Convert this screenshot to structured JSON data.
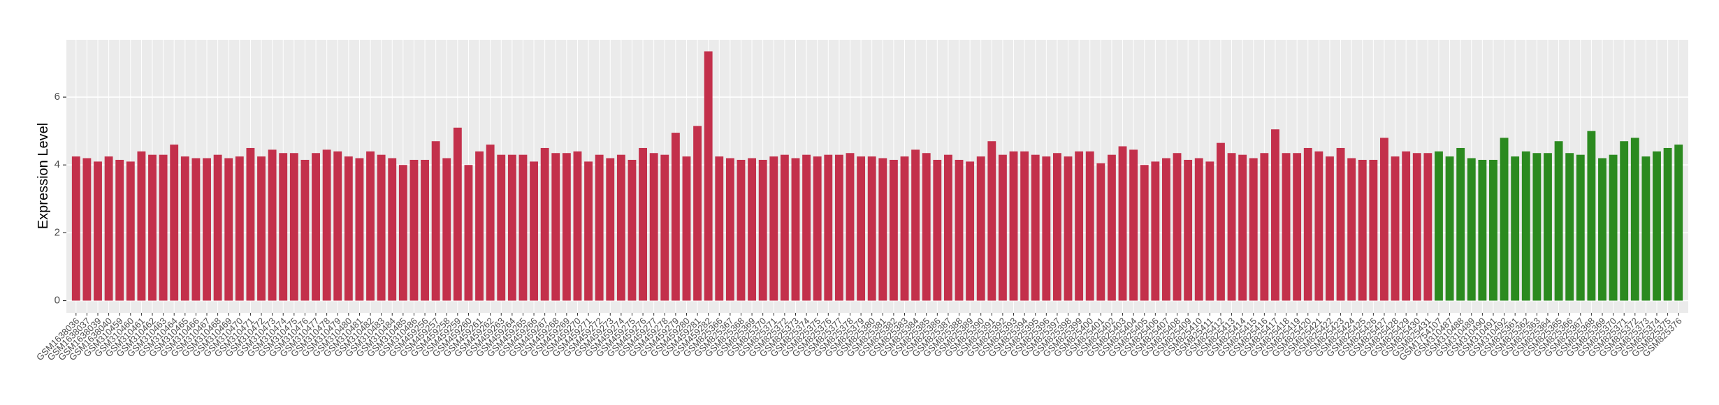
{
  "chart_data": {
    "type": "bar",
    "y_label": "Expression Level",
    "categories": [
      "GSM1638036",
      "GSM1638037",
      "GSM1638039",
      "GSM1638040",
      "GSM310459",
      "GSM310460",
      "GSM310461",
      "GSM310462",
      "GSM310463",
      "GSM310464",
      "GSM310465",
      "GSM310466",
      "GSM310467",
      "GSM310468",
      "GSM310469",
      "GSM310470",
      "GSM310471",
      "GSM310472",
      "GSM310473",
      "GSM310474",
      "GSM310475",
      "GSM310476",
      "GSM310477",
      "GSM310478",
      "GSM310479",
      "GSM310480",
      "GSM310481",
      "GSM310482",
      "GSM310483",
      "GSM310484",
      "GSM310485",
      "GSM310486",
      "GSM459256",
      "GSM459257",
      "GSM459258",
      "GSM459259",
      "GSM459260",
      "GSM459261",
      "GSM459262",
      "GSM459263",
      "GSM459264",
      "GSM459265",
      "GSM459266",
      "GSM459267",
      "GSM459268",
      "GSM459269",
      "GSM459270",
      "GSM459271",
      "GSM459272",
      "GSM459273",
      "GSM459274",
      "GSM459275",
      "GSM459276",
      "GSM459277",
      "GSM459278",
      "GSM459279",
      "GSM459280",
      "GSM459281",
      "GSM459282",
      "GSM825366",
      "GSM825367",
      "GSM825368",
      "GSM825369",
      "GSM825370",
      "GSM825371",
      "GSM825372",
      "GSM825373",
      "GSM825374",
      "GSM825375",
      "GSM825376",
      "GSM825377",
      "GSM825378",
      "GSM825379",
      "GSM825380",
      "GSM825381",
      "GSM825382",
      "GSM825383",
      "GSM825384",
      "GSM825385",
      "GSM825386",
      "GSM825387",
      "GSM825388",
      "GSM825389",
      "GSM825390",
      "GSM825391",
      "GSM825392",
      "GSM825393",
      "GSM825394",
      "GSM825395",
      "GSM825396",
      "GSM825397",
      "GSM825398",
      "GSM825399",
      "GSM825400",
      "GSM825401",
      "GSM825402",
      "GSM825403",
      "GSM825404",
      "GSM825405",
      "GSM825406",
      "GSM825407",
      "GSM825408",
      "GSM825409",
      "GSM825410",
      "GSM825411",
      "GSM825412",
      "GSM825413",
      "GSM825414",
      "GSM825415",
      "GSM825416",
      "GSM825417",
      "GSM825418",
      "GSM825419",
      "GSM825420",
      "GSM825421",
      "GSM825422",
      "GSM825423",
      "GSM825424",
      "GSM825425",
      "GSM825426",
      "GSM825427",
      "GSM825428",
      "GSM825429",
      "GSM825430",
      "GSM825431",
      "GSM1754107",
      "GSM310487",
      "GSM310488",
      "GSM310489",
      "GSM310490",
      "GSM310491",
      "GSM310492",
      "GSM825361",
      "GSM825362",
      "GSM825363",
      "GSM825364",
      "GSM825365",
      "GSM825366",
      "GSM825367",
      "GSM825368",
      "GSM825369",
      "GSM825370",
      "GSM825371",
      "GSM825372",
      "GSM825373",
      "GSM825374",
      "GSM825375",
      "GSM825376"
    ],
    "values": [
      4.25,
      4.2,
      4.1,
      4.25,
      4.15,
      4.1,
      4.4,
      4.3,
      4.3,
      4.6,
      4.25,
      4.2,
      4.2,
      4.3,
      4.2,
      4.25,
      4.5,
      4.25,
      4.45,
      4.35,
      4.35,
      4.15,
      4.35,
      4.45,
      4.4,
      4.25,
      4.2,
      4.4,
      4.3,
      4.2,
      4.0,
      4.15,
      4.15,
      4.7,
      4.2,
      5.1,
      4.0,
      4.4,
      4.6,
      4.3,
      4.3,
      4.3,
      4.1,
      4.5,
      4.35,
      4.35,
      4.4,
      4.1,
      4.3,
      4.2,
      4.3,
      4.15,
      4.5,
      4.35,
      4.3,
      4.95,
      4.25,
      5.15,
      7.35,
      4.25,
      4.2,
      4.15,
      4.2,
      4.15,
      4.25,
      4.3,
      4.2,
      4.3,
      4.25,
      4.3,
      4.3,
      4.35,
      4.25,
      4.25,
      4.2,
      4.15,
      4.25,
      4.45,
      4.35,
      4.15,
      4.3,
      4.15,
      4.1,
      4.25,
      4.7,
      4.3,
      4.4,
      4.4,
      4.3,
      4.25,
      4.35,
      4.25,
      4.4,
      4.4,
      4.05,
      4.3,
      4.55,
      4.45,
      4.0,
      4.1,
      4.2,
      4.35,
      4.15,
      4.2,
      4.1,
      4.65,
      4.35,
      4.3,
      4.2,
      4.35,
      5.05,
      4.35,
      4.35,
      4.5,
      4.4,
      4.25,
      4.5,
      4.2,
      4.15,
      4.15,
      4.8,
      4.25,
      4.4,
      4.35,
      4.35,
      4.4,
      4.25,
      4.5,
      4.2,
      4.15,
      4.15,
      4.8,
      4.25,
      4.4,
      4.35,
      4.35,
      4.7,
      4.35,
      4.3,
      5.0,
      4.2,
      4.3,
      4.7,
      4.8,
      4.25,
      4.4,
      4.5,
      4.6
    ],
    "colors": [
      "#c3304b",
      "#c3304b",
      "#c3304b",
      "#c3304b",
      "#c3304b",
      "#c3304b",
      "#c3304b",
      "#c3304b",
      "#c3304b",
      "#c3304b",
      "#c3304b",
      "#c3304b",
      "#c3304b",
      "#c3304b",
      "#c3304b",
      "#c3304b",
      "#c3304b",
      "#c3304b",
      "#c3304b",
      "#c3304b",
      "#c3304b",
      "#c3304b",
      "#c3304b",
      "#c3304b",
      "#c3304b",
      "#c3304b",
      "#c3304b",
      "#c3304b",
      "#c3304b",
      "#c3304b",
      "#c3304b",
      "#c3304b",
      "#c3304b",
      "#c3304b",
      "#c3304b",
      "#c3304b",
      "#c3304b",
      "#c3304b",
      "#c3304b",
      "#c3304b",
      "#c3304b",
      "#c3304b",
      "#c3304b",
      "#c3304b",
      "#c3304b",
      "#c3304b",
      "#c3304b",
      "#c3304b",
      "#c3304b",
      "#c3304b",
      "#c3304b",
      "#c3304b",
      "#c3304b",
      "#c3304b",
      "#c3304b",
      "#c3304b",
      "#c3304b",
      "#c3304b",
      "#c3304b",
      "#c3304b",
      "#c3304b",
      "#c3304b",
      "#c3304b",
      "#c3304b",
      "#c3304b",
      "#c3304b",
      "#c3304b",
      "#c3304b",
      "#c3304b",
      "#c3304b",
      "#c3304b",
      "#c3304b",
      "#c3304b",
      "#c3304b",
      "#c3304b",
      "#c3304b",
      "#c3304b",
      "#c3304b",
      "#c3304b",
      "#c3304b",
      "#c3304b",
      "#c3304b",
      "#c3304b",
      "#c3304b",
      "#c3304b",
      "#c3304b",
      "#c3304b",
      "#c3304b",
      "#c3304b",
      "#c3304b",
      "#c3304b",
      "#c3304b",
      "#c3304b",
      "#c3304b",
      "#c3304b",
      "#c3304b",
      "#c3304b",
      "#c3304b",
      "#c3304b",
      "#c3304b",
      "#c3304b",
      "#c3304b",
      "#c3304b",
      "#c3304b",
      "#c3304b",
      "#c3304b",
      "#c3304b",
      "#c3304b",
      "#c3304b",
      "#c3304b",
      "#c3304b",
      "#c3304b",
      "#c3304b",
      "#c3304b",
      "#c3304b",
      "#c3304b",
      "#c3304b",
      "#c3304b",
      "#c3304b",
      "#c3304b",
      "#c3304b",
      "#c3304b",
      "#c3304b",
      "#c3304b",
      "#c3304b",
      "#2b8a1f",
      "#2b8a1f",
      "#2b8a1f",
      "#2b8a1f",
      "#2b8a1f",
      "#2b8a1f",
      "#2b8a1f",
      "#2b8a1f",
      "#2b8a1f",
      "#2b8a1f",
      "#2b8a1f",
      "#2b8a1f",
      "#2b8a1f",
      "#2b8a1f",
      "#2b8a1f",
      "#2b8a1f",
      "#2b8a1f",
      "#2b8a1f",
      "#2b8a1f",
      "#2b8a1f",
      "#2b8a1f",
      "#2b8a1f",
      "#2b8a1f"
    ],
    "ylim": [
      -0.36,
      7.69
    ],
    "yticks": [
      0,
      2,
      4,
      6
    ],
    "grid": true
  }
}
